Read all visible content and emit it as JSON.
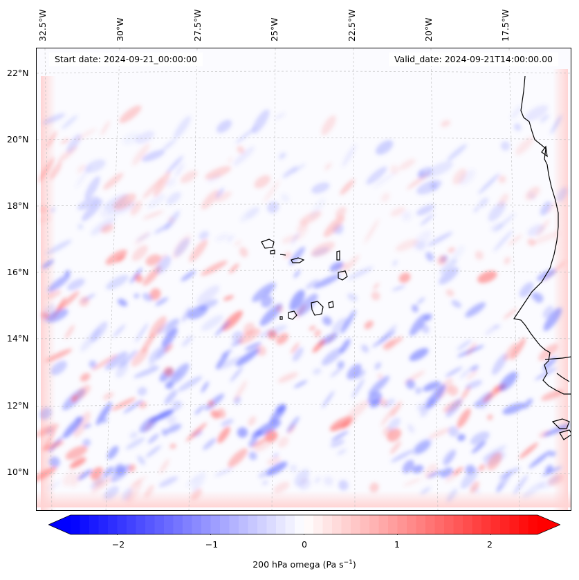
{
  "map": {
    "start_date": "Start date: 2024-09-21_00:00:00",
    "valid_date": "Valid_date: 2024-09-21T14:00:00.00",
    "lon_labels": [
      "32.5°W",
      "30°W",
      "27.5°W",
      "25°W",
      "22.5°W",
      "20°W",
      "17.5°W"
    ],
    "lat_labels": [
      "22°N",
      "20°N",
      "18°N",
      "16°N",
      "14°N",
      "12°N",
      "10°N"
    ],
    "gridlines": true,
    "coastlines": true,
    "colormap": [
      "#0000ff",
      "#ffffff",
      "#ff0000"
    ]
  },
  "colorbar": {
    "label": "200 hPa omega (Pa s",
    "label_exp": "−1",
    "label_close": ")",
    "ticks": [
      "−2",
      "−1",
      "0",
      "1",
      "2"
    ],
    "tick_values": [
      -2,
      -1,
      0,
      1,
      2
    ],
    "range": [
      -2.5,
      2.5
    ],
    "extend": "both"
  }
}
